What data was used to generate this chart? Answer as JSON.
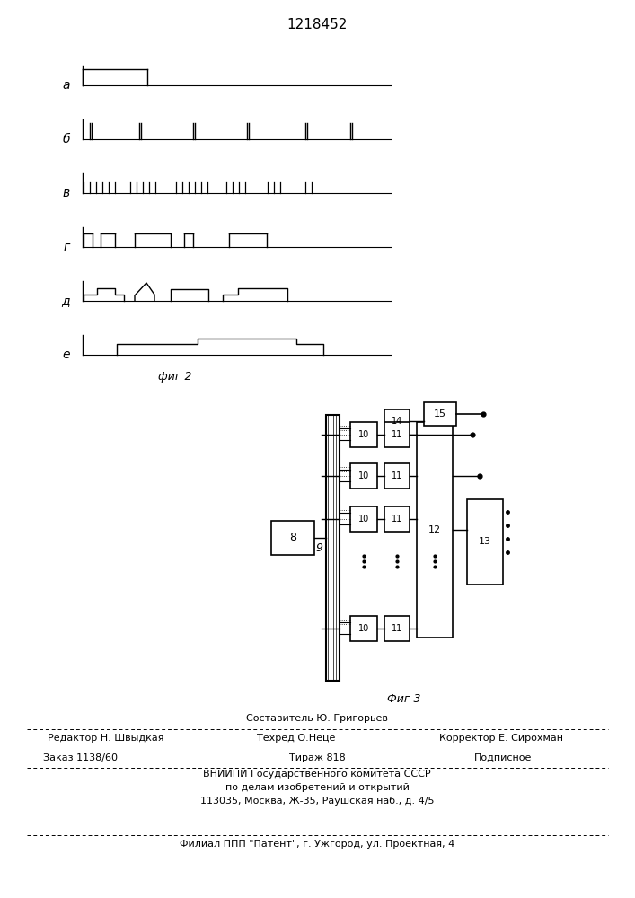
{
  "title": "1218452",
  "fig2_label": "фиг 2",
  "fig3_label": "Фиг 3",
  "bg_color": "#ffffff",
  "line_color": "#000000",
  "waveform_labels": [
    "a",
    "б",
    "в",
    "г",
    "д",
    "е"
  ],
  "footer": {
    "sestavitel": "Составитель Ю. Григорьев",
    "redaktor": "Редактор Н. Швыдкая",
    "tehred": "Техред О.Неце",
    "korrektor": "Корректор Е. Сирохман",
    "zakaz": "Заказ 1138/60",
    "tirazh": "Тираж 818",
    "podpisnoe": "Подписное",
    "vniip1": "ВНИИПИ Государственного комитета СССР",
    "vniip2": "по делам изобретений и открытий",
    "address": "113035, Москва, Ж-35, Раушская наб., д. 4/5",
    "filial": "Филиал ППП \"Патент\", г. Ужгород, ул. Проектная, 4"
  }
}
